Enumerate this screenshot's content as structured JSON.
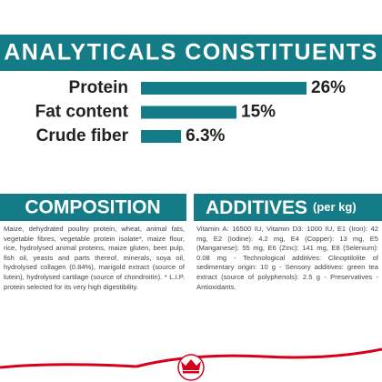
{
  "chart_data": {
    "type": "bar",
    "orientation": "horizontal",
    "title": "ANALYTICALS CONSTITUENTS",
    "categories": [
      "Protein",
      "Fat content",
      "Crude fiber"
    ],
    "values": [
      26,
      15,
      6.3
    ],
    "value_labels": [
      "26%",
      "15%",
      "6.3%"
    ],
    "color": "#137c87"
  },
  "composition": {
    "title": "COMPOSITION",
    "text": "Maize, dehydrated poultry protein, wheat, animal fats, vegetable fibres, vegetable protein isolate*, maize flour, rice, hydrolysed animal proteins, maize gluten, beet pulp, fish oil, yeasts and parts thereof, minerals, soya oil, hydrolysed collagen (0.84%), marigold extract (source of lutein), hydrolysed cartilage (source of chondroitin). * L.I.P. protein selected for its very high digestibility."
  },
  "additives": {
    "title": "ADDITIVES",
    "subtitle": "(per kg)",
    "text": "Vitamin A: 16500 IU, Vitamin D3: 1000 IU, E1 (Iron): 42 mg, E2 (Iodine): 4.2 mg, E4 (Copper): 13 mg, E5 (Manganese): 55 mg, E6 (Zinc): 141 mg, E8 (Selenium): 0.08 mg - Technological additives: Clinoptilolite of sedimentary origin: 10 g - Sensory additives: green tea extract (source of polyphenols): 2.5 g - Preservatives - Antioxidants."
  }
}
